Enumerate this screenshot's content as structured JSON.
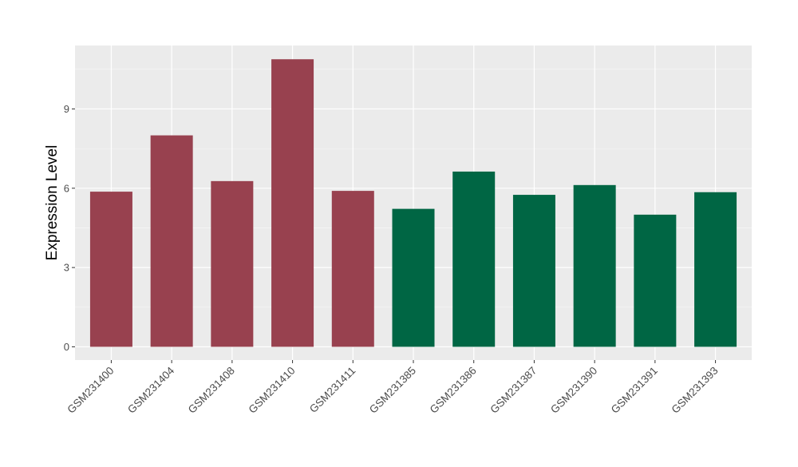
{
  "chart_data": {
    "type": "bar",
    "title": "",
    "xlabel": "",
    "ylabel": "Expression Level",
    "categories": [
      "GSM231400",
      "GSM231404",
      "GSM231408",
      "GSM231410",
      "GSM231411",
      "GSM231385",
      "GSM231386",
      "GSM231387",
      "GSM231390",
      "GSM231391",
      "GSM231393"
    ],
    "values": [
      5.87,
      8.0,
      6.27,
      10.88,
      5.9,
      5.22,
      6.63,
      5.75,
      6.12,
      5.0,
      5.85
    ],
    "bar_colors": [
      "#98414f",
      "#98414f",
      "#98414f",
      "#98414f",
      "#98414f",
      "#006644",
      "#006644",
      "#006644",
      "#006644",
      "#006644",
      "#006644"
    ],
    "ylim": [
      -0.5,
      11.4
    ],
    "yticks": [
      0,
      3,
      6,
      9
    ],
    "ytick_labels": [
      "0",
      "3",
      "6",
      "9"
    ],
    "grid": true,
    "legend": "none",
    "colors": {
      "panel_background": "#ebebeb",
      "grid_major": "#ffffff",
      "axis_text": "#4d4d4d",
      "tick_mark": "#333333",
      "axis_title": "#000000"
    }
  }
}
